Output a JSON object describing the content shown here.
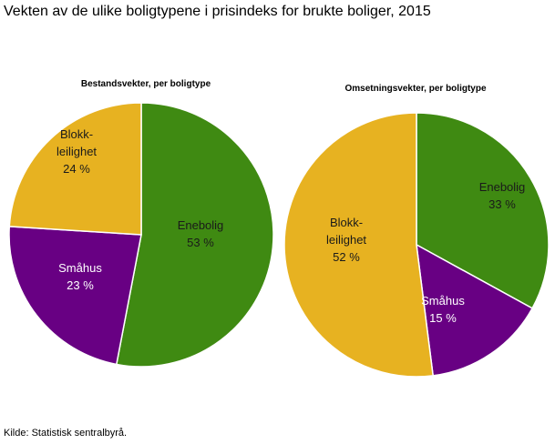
{
  "title": "Vekten av de ulike boligtypene i prisindeks for brukte boliger, 2015",
  "source": "Kilde: Statistisk sentralbyrå.",
  "chart_data": [
    {
      "type": "pie",
      "title": "Bestandsvekter, per boligtype",
      "slices": [
        {
          "label": "Enebolig",
          "value": 53,
          "value_label": "53 %",
          "color": "#3f8a12",
          "text_color": "#1a1a1a"
        },
        {
          "label": "Småhus",
          "value": 23,
          "value_label": "23 %",
          "color": "#680083",
          "text_color": "#ffffff"
        },
        {
          "label": "Blokk-leilighet",
          "value": 24,
          "value_label": "24 %",
          "color": "#e7b221",
          "text_color": "#1a1a1a"
        }
      ]
    },
    {
      "type": "pie",
      "title": "Omsetningsvekter, per boligtype",
      "slices": [
        {
          "label": "Enebolig",
          "value": 33,
          "value_label": "33 %",
          "color": "#3f8a12",
          "text_color": "#1a1a1a"
        },
        {
          "label": "Småhus",
          "value": 15,
          "value_label": "15 %",
          "color": "#680083",
          "text_color": "#ffffff"
        },
        {
          "label": "Blokk-leilighet",
          "value": 52,
          "value_label": "52 %",
          "color": "#e7b221",
          "text_color": "#1a1a1a"
        }
      ]
    }
  ]
}
